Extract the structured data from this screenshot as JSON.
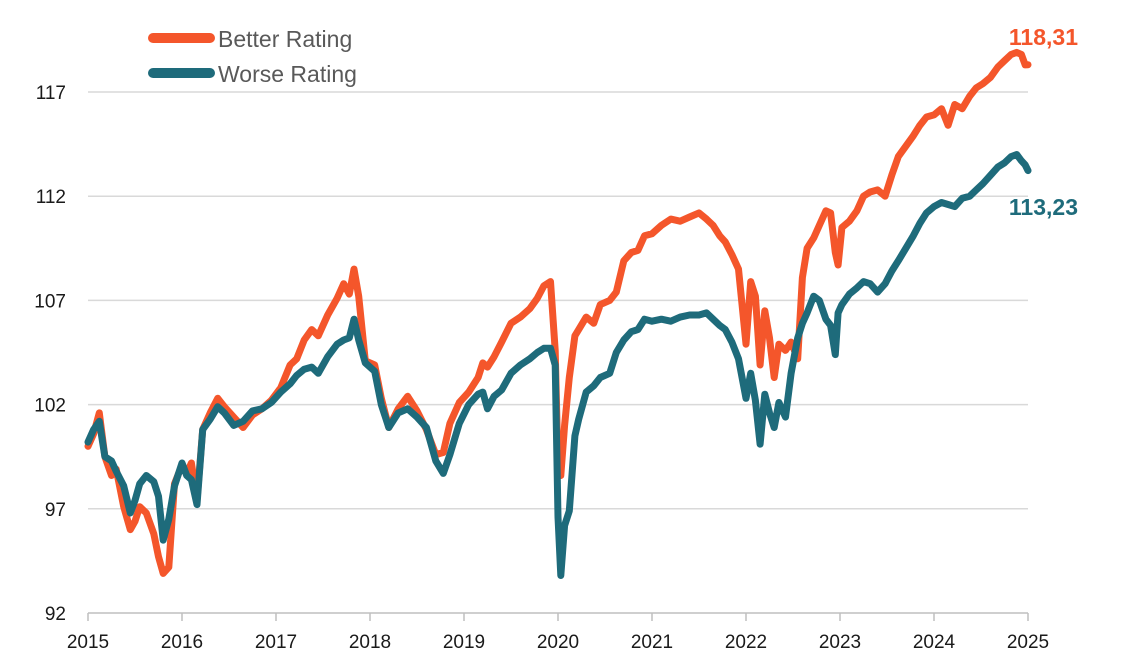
{
  "chart_data": {
    "type": "line",
    "title": "",
    "xlabel": "",
    "ylabel": "",
    "xlim": [
      2015,
      2025
    ],
    "ylim": [
      92,
      119
    ],
    "y_ticks": [
      92,
      97,
      102,
      107,
      112,
      117
    ],
    "y_tick_labels": [
      "92",
      "97",
      "102",
      "107",
      "112",
      "117"
    ],
    "x_ticks": [
      2015,
      2016,
      2017,
      2018,
      2019,
      2020,
      2021,
      2022,
      2023,
      2024,
      2025
    ],
    "x_tick_labels": [
      "2015",
      "2016",
      "2017",
      "2018",
      "2019",
      "2020",
      "2021",
      "2022",
      "2023",
      "2024",
      "2025"
    ],
    "grid": true,
    "legend_position": "top-left",
    "series": [
      {
        "name": "Better Rating",
        "color": "#f4562b",
        "end_label": "118,31",
        "x": [
          2015.0,
          2015.06,
          2015.12,
          2015.18,
          2015.25,
          2015.3,
          2015.38,
          2015.45,
          2015.5,
          2015.55,
          2015.62,
          2015.7,
          2015.75,
          2015.8,
          2015.86,
          2015.92,
          2016.0,
          2016.05,
          2016.1,
          2016.16,
          2016.22,
          2016.3,
          2016.38,
          2016.45,
          2016.55,
          2016.65,
          2016.75,
          2016.85,
          2016.95,
          2017.05,
          2017.15,
          2017.22,
          2017.3,
          2017.38,
          2017.45,
          2017.55,
          2017.65,
          2017.72,
          2017.78,
          2017.83,
          2017.88,
          2017.95,
          2018.05,
          2018.12,
          2018.2,
          2018.3,
          2018.4,
          2018.5,
          2018.6,
          2018.7,
          2018.78,
          2018.85,
          2018.95,
          2019.05,
          2019.15,
          2019.2,
          2019.25,
          2019.32,
          2019.4,
          2019.5,
          2019.6,
          2019.7,
          2019.78,
          2019.85,
          2019.92,
          2019.97,
          2020.0,
          2020.03,
          2020.07,
          2020.12,
          2020.18,
          2020.22,
          2020.3,
          2020.38,
          2020.45,
          2020.55,
          2020.62,
          2020.7,
          2020.78,
          2020.85,
          2020.92,
          2021.0,
          2021.1,
          2021.2,
          2021.3,
          2021.4,
          2021.5,
          2021.58,
          2021.65,
          2021.72,
          2021.78,
          2021.85,
          2021.92,
          2022.0,
          2022.05,
          2022.1,
          2022.15,
          2022.2,
          2022.25,
          2022.3,
          2022.35,
          2022.42,
          2022.48,
          2022.55,
          2022.6,
          2022.65,
          2022.72,
          2022.78,
          2022.85,
          2022.9,
          2022.95,
          2022.98,
          2023.02,
          2023.1,
          2023.18,
          2023.25,
          2023.32,
          2023.4,
          2023.48,
          2023.55,
          2023.62,
          2023.7,
          2023.78,
          2023.85,
          2023.92,
          2024.0,
          2024.08,
          2024.15,
          2024.22,
          2024.3,
          2024.38,
          2024.45,
          2024.52,
          2024.6,
          2024.68,
          2024.75,
          2024.82,
          2024.88,
          2024.93,
          2024.97,
          2025.0
        ],
        "values": [
          100.0,
          100.6,
          101.6,
          99.5,
          98.6,
          98.9,
          97.1,
          96.0,
          96.4,
          97.1,
          96.8,
          95.8,
          94.7,
          93.9,
          94.2,
          98.2,
          99.1,
          98.7,
          99.2,
          97.4,
          100.8,
          101.6,
          102.3,
          101.9,
          101.4,
          100.9,
          101.5,
          101.8,
          102.2,
          102.8,
          103.9,
          104.2,
          105.1,
          105.6,
          105.3,
          106.3,
          107.1,
          107.8,
          107.3,
          108.5,
          107.2,
          104.1,
          103.9,
          102.3,
          100.9,
          101.8,
          102.4,
          101.7,
          100.8,
          99.6,
          99.7,
          101.1,
          102.1,
          102.6,
          103.3,
          104.0,
          103.8,
          104.3,
          105.0,
          105.9,
          106.2,
          106.6,
          107.1,
          107.7,
          107.9,
          104.6,
          99.1,
          98.6,
          101.0,
          103.3,
          105.3,
          105.6,
          106.2,
          105.9,
          106.8,
          107.0,
          107.4,
          108.9,
          109.3,
          109.4,
          110.1,
          110.2,
          110.6,
          110.9,
          110.8,
          111.0,
          111.2,
          110.9,
          110.6,
          110.1,
          109.8,
          109.2,
          108.5,
          104.9,
          107.9,
          107.2,
          103.9,
          106.5,
          105.2,
          103.3,
          104.9,
          104.6,
          105.0,
          104.2,
          108.1,
          109.5,
          110.0,
          110.6,
          111.3,
          111.2,
          109.3,
          108.7,
          110.5,
          110.8,
          111.3,
          112.0,
          112.2,
          112.3,
          112.0,
          113.0,
          113.9,
          114.4,
          114.9,
          115.4,
          115.8,
          115.9,
          116.2,
          115.4,
          116.4,
          116.2,
          116.8,
          117.2,
          117.4,
          117.7,
          118.2,
          118.5,
          118.8,
          118.9,
          118.8,
          118.3,
          118.31
        ]
      },
      {
        "name": "Worse Rating",
        "color": "#1e6b7b",
        "end_label": "113,23",
        "x": [
          2015.0,
          2015.06,
          2015.12,
          2015.18,
          2015.25,
          2015.3,
          2015.38,
          2015.45,
          2015.5,
          2015.55,
          2015.62,
          2015.7,
          2015.75,
          2015.8,
          2015.86,
          2015.92,
          2016.0,
          2016.05,
          2016.1,
          2016.16,
          2016.22,
          2016.3,
          2016.38,
          2016.45,
          2016.55,
          2016.65,
          2016.75,
          2016.85,
          2016.95,
          2017.05,
          2017.15,
          2017.22,
          2017.3,
          2017.38,
          2017.45,
          2017.55,
          2017.65,
          2017.72,
          2017.78,
          2017.83,
          2017.88,
          2017.95,
          2018.05,
          2018.12,
          2018.2,
          2018.3,
          2018.4,
          2018.5,
          2018.6,
          2018.7,
          2018.78,
          2018.85,
          2018.95,
          2019.05,
          2019.15,
          2019.2,
          2019.25,
          2019.32,
          2019.4,
          2019.5,
          2019.6,
          2019.7,
          2019.78,
          2019.85,
          2019.92,
          2019.97,
          2020.0,
          2020.03,
          2020.07,
          2020.12,
          2020.18,
          2020.22,
          2020.3,
          2020.38,
          2020.45,
          2020.55,
          2020.62,
          2020.7,
          2020.78,
          2020.85,
          2020.92,
          2021.0,
          2021.1,
          2021.2,
          2021.3,
          2021.4,
          2021.5,
          2021.58,
          2021.65,
          2021.72,
          2021.78,
          2021.85,
          2021.92,
          2022.0,
          2022.05,
          2022.1,
          2022.15,
          2022.2,
          2022.25,
          2022.3,
          2022.35,
          2022.42,
          2022.48,
          2022.55,
          2022.6,
          2022.65,
          2022.72,
          2022.78,
          2022.85,
          2022.9,
          2022.95,
          2022.98,
          2023.02,
          2023.1,
          2023.18,
          2023.25,
          2023.32,
          2023.4,
          2023.48,
          2023.55,
          2023.62,
          2023.7,
          2023.78,
          2023.85,
          2023.92,
          2024.0,
          2024.08,
          2024.15,
          2024.22,
          2024.3,
          2024.38,
          2024.45,
          2024.52,
          2024.6,
          2024.68,
          2024.75,
          2024.82,
          2024.88,
          2024.93,
          2024.97,
          2025.0
        ],
        "values": [
          100.2,
          100.8,
          101.2,
          99.5,
          99.3,
          98.8,
          98.1,
          96.8,
          97.4,
          98.2,
          98.6,
          98.3,
          97.6,
          95.5,
          96.5,
          98.1,
          99.2,
          98.6,
          98.4,
          97.2,
          100.8,
          101.3,
          101.9,
          101.6,
          101.0,
          101.2,
          101.7,
          101.8,
          102.1,
          102.6,
          103.0,
          103.4,
          103.7,
          103.8,
          103.5,
          104.3,
          104.9,
          105.1,
          105.2,
          106.1,
          105.1,
          104.0,
          103.6,
          102.0,
          100.9,
          101.6,
          101.8,
          101.4,
          100.9,
          99.3,
          98.7,
          99.6,
          101.1,
          102.0,
          102.5,
          102.6,
          101.8,
          102.4,
          102.7,
          103.5,
          103.9,
          104.2,
          104.5,
          104.7,
          104.7,
          103.9,
          96.6,
          93.8,
          96.2,
          96.9,
          100.5,
          101.3,
          102.6,
          102.9,
          103.3,
          103.5,
          104.5,
          105.1,
          105.5,
          105.6,
          106.1,
          106.0,
          106.1,
          106.0,
          106.2,
          106.3,
          106.3,
          106.4,
          106.1,
          105.8,
          105.6,
          105.0,
          104.2,
          102.3,
          103.5,
          102.2,
          100.1,
          102.5,
          101.6,
          100.9,
          102.1,
          101.4,
          103.5,
          105.2,
          105.9,
          106.4,
          107.2,
          107.0,
          106.1,
          105.8,
          104.4,
          106.4,
          106.8,
          107.3,
          107.6,
          107.9,
          107.8,
          107.4,
          107.8,
          108.4,
          108.9,
          109.5,
          110.1,
          110.7,
          111.2,
          111.5,
          111.7,
          111.6,
          111.5,
          111.9,
          112.0,
          112.3,
          112.6,
          113.0,
          113.4,
          113.6,
          113.9,
          114.0,
          113.7,
          113.5,
          113.23
        ]
      }
    ]
  }
}
